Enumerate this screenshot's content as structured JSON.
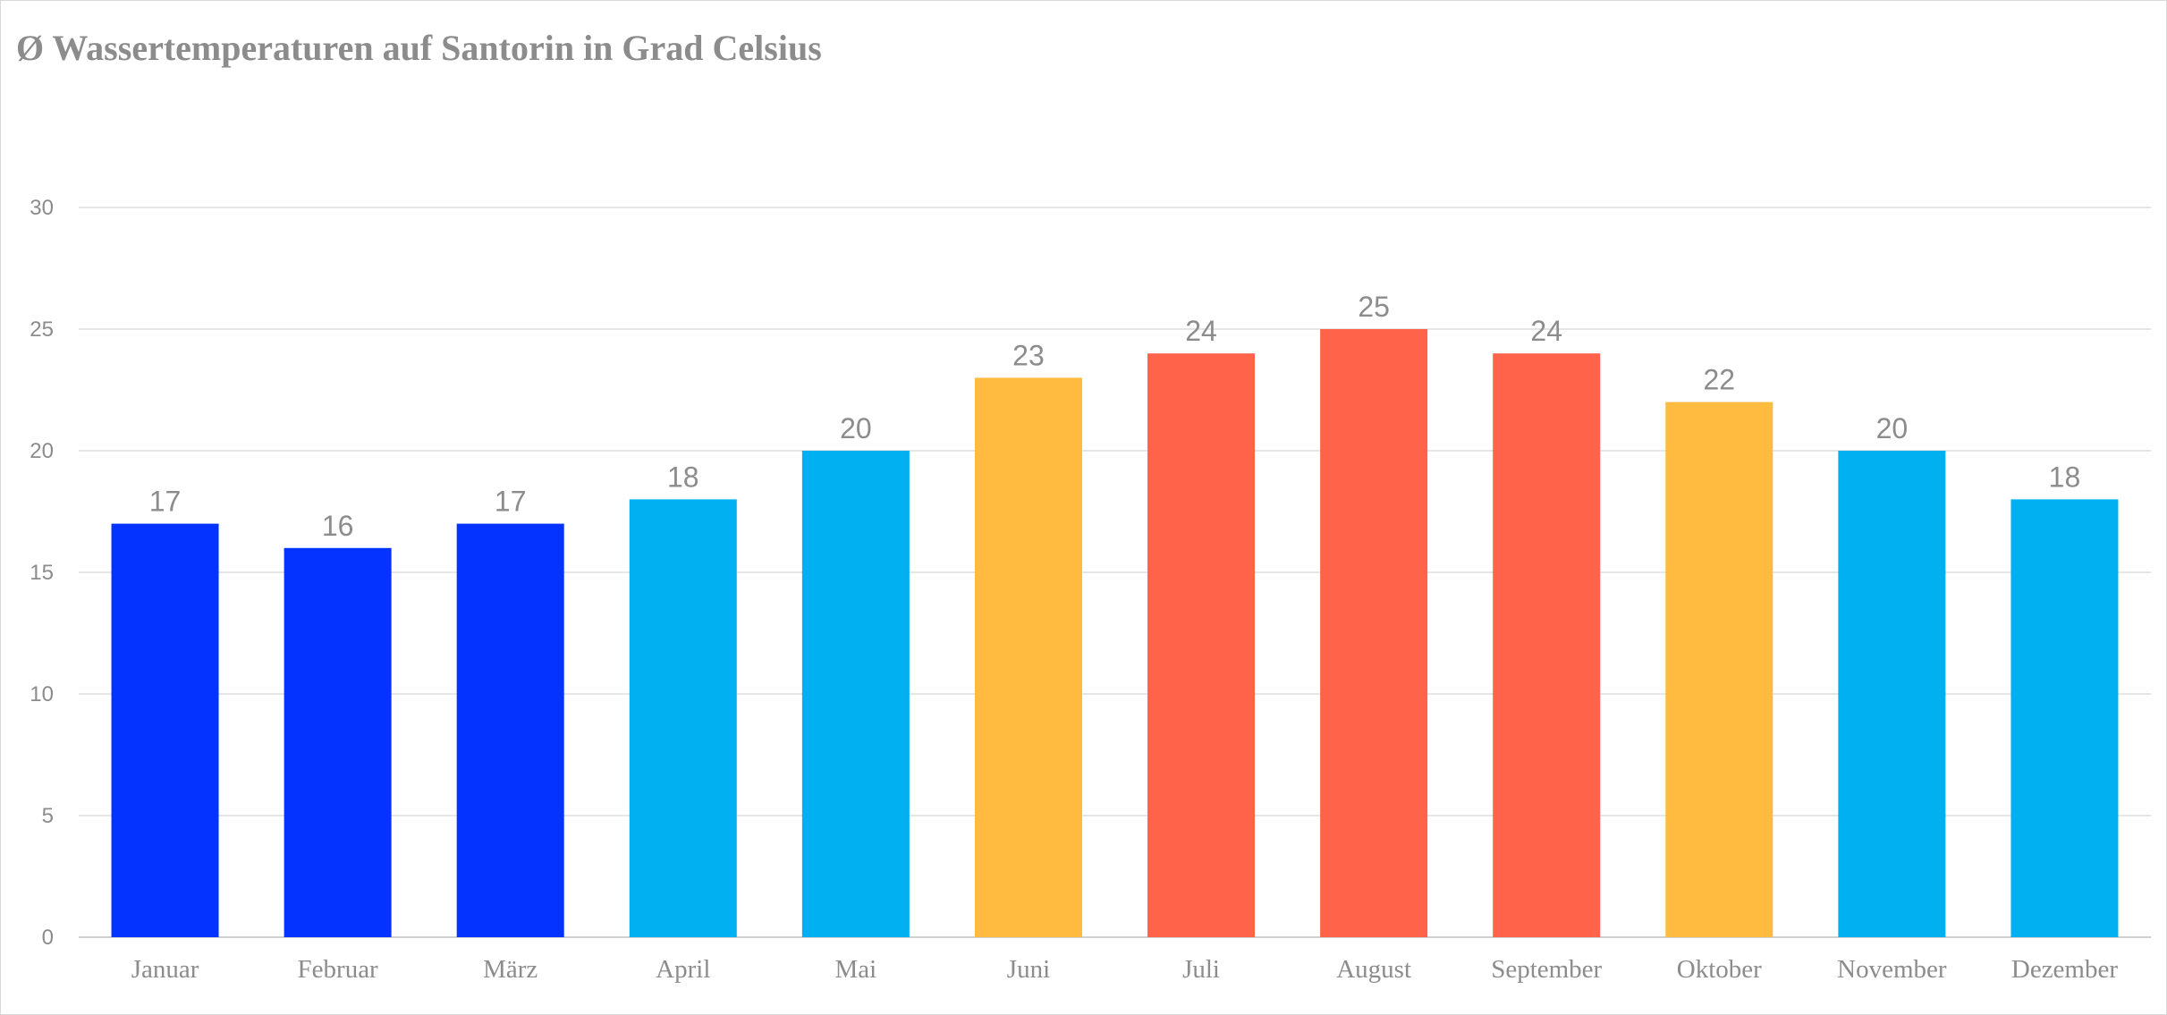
{
  "chart_data": {
    "type": "bar",
    "title": "Ø Wassertemperaturen auf Santorin in Grad Celsius",
    "xlabel": "",
    "ylabel": "",
    "categories": [
      "Januar",
      "Februar",
      "März",
      "April",
      "Mai",
      "Juni",
      "Juli",
      "August",
      "September",
      "Oktober",
      "November",
      "Dezember"
    ],
    "values": [
      17,
      16,
      17,
      18,
      20,
      23,
      24,
      25,
      24,
      22,
      20,
      18
    ],
    "colors": [
      "#0432ff",
      "#0432ff",
      "#0432ff",
      "#00b0f0",
      "#00b0f0",
      "#ffba40",
      "#ff634a",
      "#ff634a",
      "#ff634a",
      "#ffba40",
      "#00b0f0",
      "#00b0f0"
    ],
    "ylim": [
      0,
      30
    ],
    "yticks": [
      0,
      5,
      10,
      15,
      20,
      25,
      30
    ],
    "grid": true,
    "legend": "none",
    "data_labels": true
  }
}
